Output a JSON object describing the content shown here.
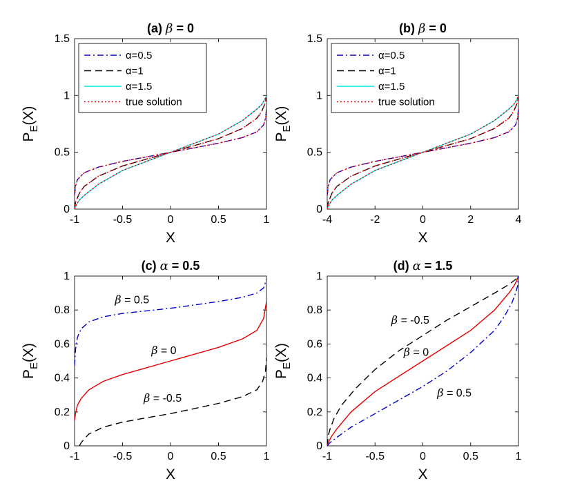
{
  "chart_data": [
    {
      "id": "a",
      "type": "line",
      "title_prefix": "(a)",
      "title_symbol": "β",
      "title_suffix": " = 0",
      "xlabel": "X",
      "ylabel": "P",
      "ylabel_sub": "E",
      "ylabel_suffix": "(X)",
      "xlim": [
        -1,
        1
      ],
      "ylim": [
        0,
        1.5
      ],
      "xticks": [
        "-1",
        "-0.5",
        "0",
        "0.5",
        "1"
      ],
      "xtick_values": [
        -1,
        -0.5,
        0,
        0.5,
        1
      ],
      "yticks": [
        "0",
        "0.5",
        "1",
        "1.5"
      ],
      "ytick_values": [
        0,
        0.5,
        1,
        1.5
      ],
      "legend_position": "top-left",
      "series": [
        {
          "name": "α=0.5",
          "color": "#0000cc",
          "dash": "dashdot",
          "x": [
            -1,
            -0.99,
            -0.97,
            -0.9,
            -0.75,
            -0.5,
            -0.25,
            0,
            0.25,
            0.5,
            0.75,
            0.9,
            0.97,
            0.99,
            1
          ],
          "y": [
            0.12,
            0.2,
            0.26,
            0.32,
            0.37,
            0.42,
            0.46,
            0.5,
            0.54,
            0.58,
            0.63,
            0.68,
            0.74,
            0.8,
            0.88
          ]
        },
        {
          "name": "α=1",
          "color": "#000000",
          "dash": "dashed",
          "x": [
            -1,
            -0.99,
            -0.95,
            -0.9,
            -0.75,
            -0.5,
            -0.25,
            0,
            0.25,
            0.5,
            0.75,
            0.9,
            0.95,
            0.99,
            1
          ],
          "y": [
            0.0,
            0.06,
            0.14,
            0.2,
            0.29,
            0.38,
            0.44,
            0.5,
            0.56,
            0.62,
            0.71,
            0.8,
            0.86,
            0.94,
            1.0
          ]
        },
        {
          "name": "α=1.5",
          "color": "#00e5e5",
          "dash": "solid",
          "x": [
            -1,
            -0.98,
            -0.95,
            -0.9,
            -0.75,
            -0.5,
            -0.25,
            0,
            0.25,
            0.5,
            0.75,
            0.9,
            0.95,
            0.98,
            1
          ],
          "y": [
            0.0,
            0.04,
            0.08,
            0.12,
            0.22,
            0.34,
            0.42,
            0.5,
            0.58,
            0.66,
            0.78,
            0.88,
            0.92,
            0.96,
            1.0
          ]
        },
        {
          "name": "true solution",
          "color": "#e00000",
          "dash": "dotted",
          "x": [
            -1,
            -0.98,
            -0.95,
            -0.9,
            -0.75,
            -0.5,
            -0.25,
            0,
            0.25,
            0.5,
            0.75,
            0.9,
            0.95,
            0.98,
            1
          ],
          "y": [
            0.0,
            0.04,
            0.08,
            0.12,
            0.22,
            0.34,
            0.42,
            0.5,
            0.58,
            0.66,
            0.78,
            0.88,
            0.92,
            0.96,
            1.0
          ]
        },
        {
          "name": "",
          "color": "#ff0000",
          "dash": "dotted",
          "hidden_in_legend": true,
          "x": [
            -1,
            -0.99,
            -0.97,
            -0.9,
            -0.75,
            -0.5,
            -0.25,
            0,
            0.25,
            0.5,
            0.75,
            0.9,
            0.97,
            0.99,
            1
          ],
          "y": [
            0.12,
            0.2,
            0.26,
            0.32,
            0.37,
            0.42,
            0.46,
            0.5,
            0.54,
            0.58,
            0.63,
            0.68,
            0.74,
            0.8,
            0.88
          ]
        },
        {
          "name": "",
          "color": "#ff0000",
          "dash": "dotted",
          "hidden_in_legend": true,
          "x": [
            -1,
            -0.99,
            -0.95,
            -0.9,
            -0.75,
            -0.5,
            -0.25,
            0,
            0.25,
            0.5,
            0.75,
            0.9,
            0.95,
            0.99,
            1
          ],
          "y": [
            0.0,
            0.06,
            0.14,
            0.2,
            0.29,
            0.38,
            0.44,
            0.5,
            0.56,
            0.62,
            0.71,
            0.8,
            0.86,
            0.94,
            1.0
          ]
        }
      ],
      "annotations": []
    },
    {
      "id": "b",
      "type": "line",
      "title_prefix": "(b)",
      "title_symbol": "β",
      "title_suffix": " = 0",
      "xlabel": "X",
      "ylabel": "P",
      "ylabel_sub": "E",
      "ylabel_suffix": "(X)",
      "xlim": [
        -4,
        4
      ],
      "ylim": [
        0,
        1.5
      ],
      "xticks": [
        "-4",
        "-2",
        "0",
        "2",
        "4"
      ],
      "xtick_values": [
        -4,
        -2,
        0,
        2,
        4
      ],
      "yticks": [
        "0",
        "0.5",
        "1",
        "1.5"
      ],
      "ytick_values": [
        0,
        0.5,
        1,
        1.5
      ],
      "legend_position": "top-left",
      "series": [
        {
          "name": "α=0.5",
          "color": "#0000cc",
          "dash": "dashdot",
          "x": [
            -4,
            -3.96,
            -3.88,
            -3.6,
            -3.0,
            -2.0,
            -1.0,
            0,
            1.0,
            2.0,
            3.0,
            3.6,
            3.88,
            3.96,
            4
          ],
          "y": [
            0.12,
            0.2,
            0.26,
            0.32,
            0.37,
            0.42,
            0.46,
            0.5,
            0.54,
            0.58,
            0.63,
            0.68,
            0.74,
            0.8,
            0.88
          ]
        },
        {
          "name": "α=1",
          "color": "#000000",
          "dash": "dashed",
          "x": [
            -4,
            -3.96,
            -3.8,
            -3.6,
            -3.0,
            -2.0,
            -1.0,
            0,
            1.0,
            2.0,
            3.0,
            3.6,
            3.8,
            3.96,
            4
          ],
          "y": [
            0.0,
            0.06,
            0.14,
            0.2,
            0.29,
            0.38,
            0.44,
            0.5,
            0.56,
            0.62,
            0.71,
            0.8,
            0.86,
            0.94,
            1.0
          ]
        },
        {
          "name": "α=1.5",
          "color": "#00e5e5",
          "dash": "solid",
          "x": [
            -4,
            -3.92,
            -3.8,
            -3.6,
            -3.0,
            -2.0,
            -1.0,
            0,
            1.0,
            2.0,
            3.0,
            3.6,
            3.8,
            3.92,
            4
          ],
          "y": [
            0.0,
            0.04,
            0.08,
            0.12,
            0.22,
            0.34,
            0.42,
            0.5,
            0.58,
            0.66,
            0.78,
            0.88,
            0.92,
            0.96,
            1.0
          ]
        },
        {
          "name": "true solution",
          "color": "#e00000",
          "dash": "dotted",
          "x": [
            -4,
            -3.92,
            -3.8,
            -3.6,
            -3.0,
            -2.0,
            -1.0,
            0,
            1.0,
            2.0,
            3.0,
            3.6,
            3.8,
            3.92,
            4
          ],
          "y": [
            0.0,
            0.04,
            0.08,
            0.12,
            0.22,
            0.34,
            0.42,
            0.5,
            0.58,
            0.66,
            0.78,
            0.88,
            0.92,
            0.96,
            1.0
          ]
        },
        {
          "name": "",
          "color": "#ff0000",
          "dash": "dotted",
          "hidden_in_legend": true,
          "x": [
            -4,
            -3.96,
            -3.88,
            -3.6,
            -3.0,
            -2.0,
            -1.0,
            0,
            1.0,
            2.0,
            3.0,
            3.6,
            3.88,
            3.96,
            4
          ],
          "y": [
            0.12,
            0.2,
            0.26,
            0.32,
            0.37,
            0.42,
            0.46,
            0.5,
            0.54,
            0.58,
            0.63,
            0.68,
            0.74,
            0.8,
            0.88
          ]
        },
        {
          "name": "",
          "color": "#ff0000",
          "dash": "dotted",
          "hidden_in_legend": true,
          "x": [
            -4,
            -3.96,
            -3.8,
            -3.6,
            -3.0,
            -2.0,
            -1.0,
            0,
            1.0,
            2.0,
            3.0,
            3.6,
            3.8,
            3.96,
            4
          ],
          "y": [
            0.0,
            0.06,
            0.14,
            0.2,
            0.29,
            0.38,
            0.44,
            0.5,
            0.56,
            0.62,
            0.71,
            0.8,
            0.86,
            0.94,
            1.0
          ]
        }
      ],
      "annotations": []
    },
    {
      "id": "c",
      "type": "line",
      "title_prefix": "(c)",
      "title_symbol": "α",
      "title_suffix": " = 0.5",
      "xlabel": "X",
      "ylabel": "P",
      "ylabel_sub": "E",
      "ylabel_suffix": "(X)",
      "xlim": [
        -1,
        1
      ],
      "ylim": [
        0,
        1
      ],
      "xticks": [
        "-1",
        "-0.5",
        "0",
        "0.5",
        "1"
      ],
      "xtick_values": [
        -1,
        -0.5,
        0,
        0.5,
        1
      ],
      "yticks": [
        "0",
        "0.2",
        "0.4",
        "0.6",
        "0.8",
        "1"
      ],
      "ytick_values": [
        0,
        0.2,
        0.4,
        0.6,
        0.8,
        1
      ],
      "legend_position": "none",
      "series": [
        {
          "name": "β = 0.5",
          "color": "#0000cc",
          "dash": "dashdot",
          "x": [
            -1,
            -0.99,
            -0.97,
            -0.93,
            -0.85,
            -0.7,
            -0.5,
            -0.25,
            0,
            0.25,
            0.5,
            0.75,
            0.9,
            0.97,
            1
          ],
          "y": [
            0.47,
            0.57,
            0.64,
            0.69,
            0.73,
            0.76,
            0.78,
            0.795,
            0.81,
            0.83,
            0.85,
            0.875,
            0.9,
            0.93,
            0.98
          ]
        },
        {
          "name": "β = 0",
          "color": "#e60000",
          "dash": "solid",
          "x": [
            -1,
            -0.99,
            -0.97,
            -0.93,
            -0.85,
            -0.7,
            -0.5,
            -0.25,
            0,
            0.25,
            0.5,
            0.75,
            0.9,
            0.97,
            1
          ],
          "y": [
            0.15,
            0.19,
            0.24,
            0.28,
            0.33,
            0.38,
            0.42,
            0.46,
            0.5,
            0.54,
            0.58,
            0.63,
            0.68,
            0.75,
            0.85
          ]
        },
        {
          "name": "β = -0.5",
          "color": "#000000",
          "dash": "dashed",
          "x": [
            -0.95,
            -0.93,
            -0.9,
            -0.85,
            -0.7,
            -0.5,
            -0.25,
            0,
            0.25,
            0.5,
            0.75,
            0.9,
            0.96,
            0.99,
            1
          ],
          "y": [
            0.0,
            0.02,
            0.04,
            0.07,
            0.11,
            0.14,
            0.165,
            0.19,
            0.22,
            0.25,
            0.29,
            0.33,
            0.38,
            0.44,
            0.52
          ]
        }
      ],
      "annotations": [
        {
          "symbol": "β",
          "text": " = 0.5",
          "x": -0.58,
          "y": 0.84
        },
        {
          "symbol": "β",
          "text": " = 0",
          "x": -0.2,
          "y": 0.54
        },
        {
          "symbol": "β",
          "text": " = -0.5",
          "x": -0.28,
          "y": 0.26
        }
      ]
    },
    {
      "id": "d",
      "type": "line",
      "title_prefix": "(d)",
      "title_symbol": "α",
      "title_suffix": " = 1.5",
      "xlabel": "X",
      "ylabel": "P",
      "ylabel_sub": "E",
      "ylabel_suffix": "(X)",
      "xlim": [
        -1,
        1
      ],
      "ylim": [
        0,
        1
      ],
      "xticks": [
        "-1",
        "-0.5",
        "0",
        "0.5",
        "1"
      ],
      "xtick_values": [
        -1,
        -0.5,
        0,
        0.5,
        1
      ],
      "yticks": [
        "0",
        "0.2",
        "0.4",
        "0.6",
        "0.8",
        "1"
      ],
      "ytick_values": [
        0,
        0.2,
        0.4,
        0.6,
        0.8,
        1
      ],
      "legend_position": "none",
      "series": [
        {
          "name": "β = -0.5",
          "color": "#000000",
          "dash": "dashed",
          "x": [
            -1,
            -0.99,
            -0.97,
            -0.93,
            -0.85,
            -0.7,
            -0.5,
            -0.25,
            0,
            0.25,
            0.5,
            0.75,
            0.9,
            0.97,
            1
          ],
          "y": [
            0.0,
            0.06,
            0.1,
            0.16,
            0.24,
            0.34,
            0.45,
            0.56,
            0.65,
            0.74,
            0.82,
            0.9,
            0.95,
            0.98,
            1.0
          ]
        },
        {
          "name": "β = 0",
          "color": "#e60000",
          "dash": "solid",
          "x": [
            -1,
            -0.98,
            -0.95,
            -0.9,
            -0.75,
            -0.5,
            -0.25,
            0,
            0.25,
            0.5,
            0.75,
            0.9,
            0.95,
            0.98,
            1
          ],
          "y": [
            0.0,
            0.03,
            0.06,
            0.1,
            0.2,
            0.32,
            0.41,
            0.5,
            0.59,
            0.68,
            0.8,
            0.9,
            0.94,
            0.97,
            1.0
          ]
        },
        {
          "name": "β = 0.5",
          "color": "#0000cc",
          "dash": "dashdot",
          "x": [
            -1,
            -0.97,
            -0.9,
            -0.75,
            -0.5,
            -0.25,
            0,
            0.25,
            0.5,
            0.75,
            0.85,
            0.93,
            0.97,
            0.99,
            1
          ],
          "y": [
            0.0,
            0.02,
            0.05,
            0.11,
            0.19,
            0.27,
            0.35,
            0.44,
            0.55,
            0.68,
            0.76,
            0.84,
            0.9,
            0.94,
            1.0
          ]
        }
      ],
      "annotations": [
        {
          "symbol": "β",
          "text": " = -0.5",
          "x": -0.33,
          "y": 0.72
        },
        {
          "symbol": "β",
          "text": " = 0",
          "x": -0.2,
          "y": 0.53
        },
        {
          "symbol": "β",
          "text": " = 0.5",
          "x": 0.15,
          "y": 0.29
        }
      ]
    }
  ]
}
